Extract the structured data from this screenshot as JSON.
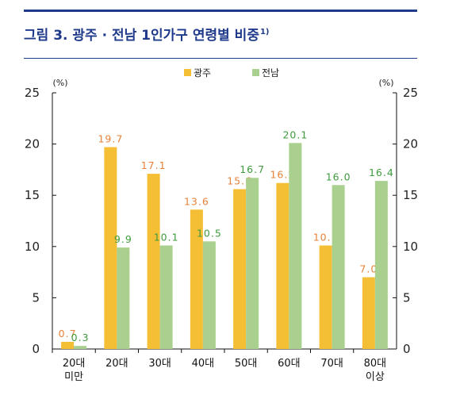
{
  "figure": {
    "title": "그림 3. 광주 · 전남 1인가구 연령별 비중",
    "title_note": "1)"
  },
  "colors": {
    "gwangju": "#f5bf35",
    "jeonnam": "#a9d08e",
    "gwangju_label": "#e8823a",
    "jeonnam_label": "#3e9c3e",
    "rule": "#1f3a8a"
  },
  "chart_data": {
    "type": "bar",
    "title": "그림 3. 광주 · 전남 1인가구 연령별 비중",
    "y_unit_left": "(%)",
    "y_unit_right": "(%)",
    "ylim": [
      0,
      25
    ],
    "yticks": [
      0,
      5,
      10,
      15,
      20,
      25
    ],
    "grid": false,
    "legend": "top-center",
    "categories": [
      [
        "20대",
        "미만"
      ],
      [
        "20대"
      ],
      [
        "30대"
      ],
      [
        "40대"
      ],
      [
        "50대"
      ],
      [
        "60대"
      ],
      [
        "70대"
      ],
      [
        "80대",
        "이상"
      ]
    ],
    "series": [
      {
        "name": "광주",
        "values": [
          0.7,
          19.7,
          17.1,
          13.6,
          15.6,
          16.2,
          10.1,
          7.0
        ],
        "labels": [
          "0.7",
          "19.7",
          "17.1",
          "13.6",
          "15.6",
          "16.2",
          "10.1",
          "7.0"
        ]
      },
      {
        "name": "전남",
        "values": [
          0.3,
          9.9,
          10.1,
          10.5,
          16.7,
          20.1,
          16.0,
          16.4
        ],
        "labels": [
          "0.3",
          "9.9",
          "10.1",
          "10.5",
          "16.7",
          "20.1",
          "16.0",
          "16.4"
        ]
      }
    ]
  }
}
